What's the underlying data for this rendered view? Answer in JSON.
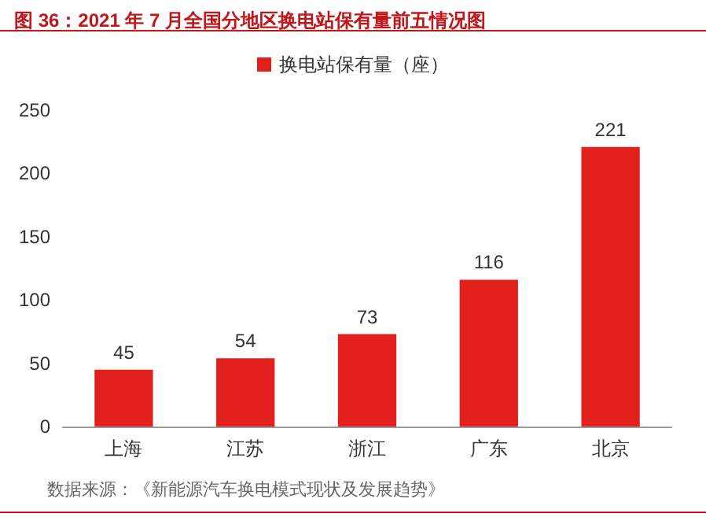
{
  "chart_data": {
    "type": "bar",
    "title": "图 36：2021 年 7 月全国分地区换电站保有量前五情况图",
    "categories": [
      "上海",
      "江苏",
      "浙江",
      "广东",
      "北京"
    ],
    "series": [
      {
        "name": "换电站保有量（座）",
        "color": "#e3211c",
        "values": [
          45,
          54,
          73,
          116,
          221
        ]
      }
    ],
    "ylim": [
      0,
      250
    ],
    "yticks": [
      0,
      50,
      100,
      150,
      200,
      250
    ],
    "grid": false,
    "legend": "top",
    "data_labels": true,
    "annotations": [
      "数据来源：《新能源汽车换电模式现状及发展趋势》"
    ]
  }
}
